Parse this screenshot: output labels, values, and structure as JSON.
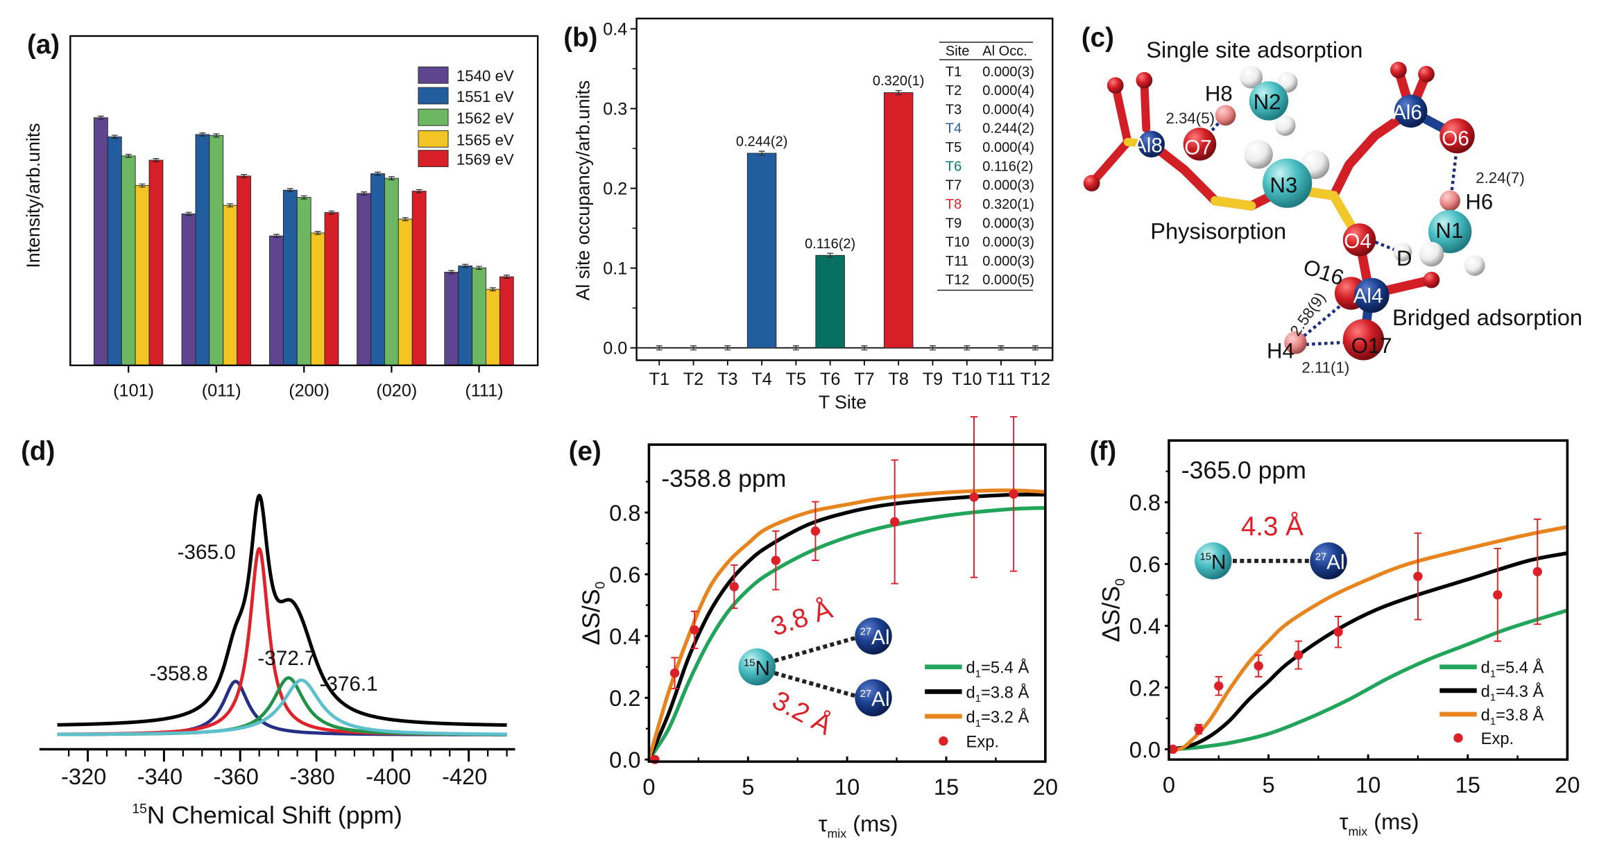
{
  "panels": {
    "a": "(a)",
    "b": "(b)",
    "c": "(c)",
    "d": "(d)",
    "e": "(e)",
    "f": "(f)"
  },
  "chart_data": [
    {
      "id": "a",
      "type": "bar",
      "title": "",
      "xlabel": "",
      "ylabel": "Intensity/arb.units",
      "ylim": [
        0,
        1
      ],
      "legend": "top-right",
      "categories": [
        "(101)",
        "(011)",
        "(200)",
        "(020)",
        "(111)"
      ],
      "series": [
        {
          "name": "1540 eV",
          "color": "#5f4590",
          "values": [
            0.752,
            0.46,
            0.393,
            0.522,
            0.283
          ]
        },
        {
          "name": "1551 eV",
          "color": "#225d9f",
          "values": [
            0.694,
            0.701,
            0.532,
            0.582,
            0.302
          ]
        },
        {
          "name": "1562 eV",
          "color": "#6db662",
          "values": [
            0.636,
            0.698,
            0.51,
            0.568,
            0.296
          ]
        },
        {
          "name": "1565 eV",
          "color": "#f2c424",
          "values": [
            0.546,
            0.486,
            0.402,
            0.444,
            0.231
          ]
        },
        {
          "name": "1569 eV",
          "color": "#d71f27",
          "values": [
            0.623,
            0.575,
            0.464,
            0.529,
            0.269
          ]
        }
      ]
    },
    {
      "id": "b",
      "type": "bar",
      "xlabel": "T Site",
      "ylabel": "Al site occupancy/arb.units",
      "ylim": [
        -0.015,
        0.413
      ],
      "yticks": [
        "0.0",
        "0.1",
        "0.2",
        "0.3",
        "0.4"
      ],
      "categories": [
        "T1",
        "T2",
        "T3",
        "T4",
        "T5",
        "T6",
        "T7",
        "T8",
        "T9",
        "T10",
        "T11",
        "T12"
      ],
      "values": [
        0.0,
        0.0,
        0.0,
        0.244,
        0.0,
        0.116,
        0.0,
        0.32,
        0.0,
        0.0,
        0.0,
        0.0
      ],
      "bar_colors": {
        "T4": "#225d9f",
        "T6": "#087062",
        "T8": "#d71f27"
      },
      "bar_labels": {
        "T4": "0.244(2)",
        "T6": "0.116(2)",
        "T8": "0.320(1)"
      },
      "table": {
        "headers": [
          "Site",
          "Al Occ."
        ],
        "rows": [
          {
            "site": "T1",
            "occ": "0.000(3)",
            "color": "#111111"
          },
          {
            "site": "T2",
            "occ": "0.000(4)",
            "color": "#111111"
          },
          {
            "site": "T3",
            "occ": "0.000(4)",
            "color": "#111111"
          },
          {
            "site": "T4",
            "occ": "0.244(2)",
            "color": "#2a5aa8"
          },
          {
            "site": "T5",
            "occ": "0.000(4)",
            "color": "#111111"
          },
          {
            "site": "T6",
            "occ": "0.116(2)",
            "color": "#0b7a6c"
          },
          {
            "site": "T7",
            "occ": "0.000(3)",
            "color": "#111111"
          },
          {
            "site": "T8",
            "occ": "0.320(1)",
            "color": "#d71f27"
          },
          {
            "site": "T9",
            "occ": "0.000(3)",
            "color": "#111111"
          },
          {
            "site": "T10",
            "occ": "0.000(3)",
            "color": "#111111"
          },
          {
            "site": "T11",
            "occ": "0.000(3)",
            "color": "#111111"
          },
          {
            "site": "T12",
            "occ": "0.000(5)",
            "color": "#111111"
          }
        ]
      }
    },
    {
      "id": "d",
      "type": "line",
      "xlabel_sup": "15",
      "xlabel": "N Chemical Shift (ppm)",
      "xlim": [
        -312,
        -430
      ],
      "xticks": [
        "-320",
        "-340",
        "-360",
        "-380",
        "-400",
        "-420"
      ],
      "envelope_color": "#000000",
      "envelope_offset": 0.035,
      "peaks": [
        {
          "label": "-358.8",
          "center": -358.8,
          "amplitude": 0.23,
          "hwhm": 4.0,
          "color": "#262f86"
        },
        {
          "label": "-365.0",
          "center": -365.0,
          "amplitude": 0.8,
          "hwhm": 3.0,
          "color": "#e0232b"
        },
        {
          "label": "-372.7",
          "center": -372.7,
          "amplitude": 0.245,
          "hwhm": 5.0,
          "color": "#1f9448"
        },
        {
          "label": "-376.1",
          "center": -376.1,
          "amplitude": 0.235,
          "hwhm": 6.0,
          "color": "#5ec0cc"
        }
      ]
    },
    {
      "id": "e",
      "type": "line",
      "annotation": "-358.8 ppm",
      "xlabel_symbol": "τ",
      "xlabel_sub": "mix",
      "xlabel_unit": " (ms)",
      "ylabel": "ΔS/S",
      "ylabel_sub": "0",
      "xlim": [
        0,
        20
      ],
      "ylim": [
        0,
        1.02
      ],
      "xticks": [
        "0",
        "5",
        "10",
        "15",
        "20"
      ],
      "yticks": [
        "0.0",
        "0.2",
        "0.4",
        "0.6",
        "0.8"
      ],
      "legend": "bottom-right",
      "series": [
        {
          "prefix": "d",
          "sub": "1",
          "text": "=5.4 Å",
          "color": "#21a55a",
          "x": [
            0,
            1,
            2,
            3,
            4,
            5,
            6,
            8,
            10,
            12,
            15,
            18,
            20
          ],
          "y": [
            0,
            0.1,
            0.25,
            0.38,
            0.48,
            0.55,
            0.6,
            0.67,
            0.72,
            0.755,
            0.79,
            0.81,
            0.815
          ]
        },
        {
          "prefix": "d",
          "sub": "1",
          "text": "=3.8 Å",
          "color": "#000000",
          "x": [
            0,
            1,
            2,
            3,
            4,
            5,
            6,
            8,
            10,
            12,
            15,
            18,
            20
          ],
          "y": [
            0,
            0.15,
            0.33,
            0.47,
            0.57,
            0.64,
            0.69,
            0.76,
            0.8,
            0.825,
            0.845,
            0.857,
            0.858
          ]
        },
        {
          "prefix": "d",
          "sub": "1",
          "text": "=3.2 Å",
          "color": "#e8841e",
          "x": [
            0,
            1,
            2,
            3,
            4,
            5,
            6,
            8,
            10,
            12,
            15,
            18,
            20
          ],
          "y": [
            0,
            0.22,
            0.4,
            0.55,
            0.64,
            0.7,
            0.75,
            0.8,
            0.826,
            0.848,
            0.865,
            0.872,
            0.867
          ]
        }
      ],
      "experimental": {
        "label": "Exp.",
        "color": "#dd1f27",
        "x": [
          0.3,
          1.3,
          2.3,
          4.3,
          6.4,
          8.4,
          12.4,
          16.4,
          18.4
        ],
        "y": [
          0.0,
          0.28,
          0.42,
          0.56,
          0.645,
          0.74,
          0.77,
          0.85,
          0.86
        ],
        "err": [
          0,
          0.05,
          0.06,
          0.07,
          0.095,
          0.095,
          0.2,
          0.26,
          0.25
        ]
      },
      "inset": {
        "n_label_sup": "15",
        "n_label": "N",
        "al_label_sup": "27",
        "al_label": "Al",
        "distance_1": "3.8 Å",
        "distance_2": "3.2 Å"
      }
    },
    {
      "id": "f",
      "type": "line",
      "annotation": "-365.0 ppm",
      "xlabel_symbol": "τ",
      "xlabel_sub": "mix",
      "xlabel_unit": " (ms)",
      "ylabel": "ΔS/S",
      "ylabel_sub": "0",
      "xlim": [
        0,
        20
      ],
      "ylim": [
        0,
        1.0
      ],
      "xticks": [
        "0",
        "5",
        "10",
        "15",
        "20"
      ],
      "yticks": [
        "0.0",
        "0.2",
        "0.4",
        "0.6",
        "0.8"
      ],
      "legend": "bottom-right",
      "series": [
        {
          "prefix": "d",
          "sub": "1",
          "text": "=5.4 Å",
          "color": "#21a55a",
          "x": [
            0,
            1,
            3,
            5,
            7,
            9,
            11,
            13,
            15,
            17,
            20
          ],
          "y": [
            0,
            0.003,
            0.02,
            0.05,
            0.1,
            0.16,
            0.23,
            0.29,
            0.34,
            0.39,
            0.45
          ]
        },
        {
          "prefix": "d",
          "sub": "1",
          "text": "=4.3 Å",
          "color": "#000000",
          "x": [
            0,
            1,
            2,
            3,
            4,
            5,
            6,
            8,
            10,
            12,
            15,
            18,
            20
          ],
          "y": [
            0,
            0.01,
            0.04,
            0.09,
            0.16,
            0.22,
            0.28,
            0.37,
            0.44,
            0.49,
            0.55,
            0.61,
            0.635
          ]
        },
        {
          "prefix": "d",
          "sub": "1",
          "text": "=3.8 Å",
          "color": "#e8841e",
          "x": [
            0,
            0.5,
            1,
            2,
            3,
            4,
            5,
            6,
            8,
            10,
            12,
            15,
            18,
            20
          ],
          "y": [
            0,
            0,
            0.02,
            0.09,
            0.19,
            0.28,
            0.35,
            0.41,
            0.49,
            0.55,
            0.6,
            0.65,
            0.695,
            0.72
          ]
        }
      ],
      "experimental": {
        "label": "Exp.",
        "color": "#dd1f27",
        "x": [
          0.2,
          1.5,
          2.5,
          4.5,
          6.5,
          8.5,
          12.5,
          16.5,
          18.5
        ],
        "y": [
          0.0,
          0.065,
          0.205,
          0.27,
          0.305,
          0.38,
          0.56,
          0.5,
          0.575
        ],
        "err": [
          0,
          0.015,
          0.03,
          0.035,
          0.045,
          0.05,
          0.14,
          0.15,
          0.17
        ]
      },
      "inset": {
        "n_label_sup": "15",
        "n_label": "N",
        "al_label_sup": "27",
        "al_label": "Al",
        "distance_1": "4.3 Å"
      }
    }
  ],
  "structure": {
    "titles": {
      "single": "Single site adsorption",
      "physi": "Physisorption",
      "bridged": "Bridged adsorption"
    },
    "atoms": {
      "al8": "Al8",
      "o7": "O7",
      "h8": "H8",
      "n2": "N2",
      "n3": "N3",
      "al6": "Al6",
      "o6": "O6",
      "h6": "H6",
      "n1": "N1",
      "o4": "O4",
      "d": "D",
      "o16": "O16",
      "al4": "Al4",
      "o17": "O17",
      "h4": "H4"
    },
    "distances": {
      "o7_h8": "2.34(5)",
      "o6_h6": "2.24(7)",
      "o16_h4": "2.58(9)",
      "o17_h4": "2.11(1)"
    },
    "colors": {
      "oxygen": "#d21f26",
      "aluminium": "#1c3f8f",
      "nitrogen": "#49bfc4",
      "hydrogen": "#f3f3f3",
      "bonded_h": "#e88585",
      "silicon": "#f2c72a",
      "hbond": "#1c2a80"
    }
  }
}
